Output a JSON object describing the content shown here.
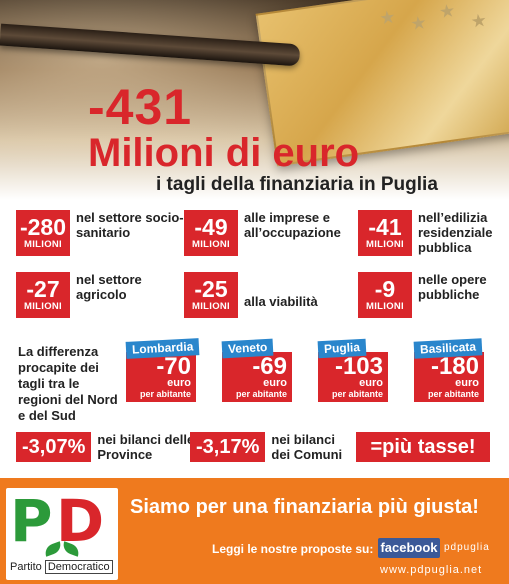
{
  "headline": {
    "number": "-431",
    "unit": "Milioni di euro",
    "subtitle": "i tagli della finanziaria in Puglia"
  },
  "cuts": [
    {
      "value": "-280",
      "unit": "MILIONI",
      "description": "nel settore socio-sanitario"
    },
    {
      "value": "-49",
      "unit": "MILIONI",
      "description": "alle imprese e all’occupazione"
    },
    {
      "value": "-41",
      "unit": "MILIONI",
      "description": "nell’edilizia residenziale pubblica"
    },
    {
      "value": "-27",
      "unit": "MILIONI",
      "description": "nel settore agricolo"
    },
    {
      "value": "-25",
      "unit": "MILIONI",
      "description": "alla viabilità"
    },
    {
      "value": "-9",
      "unit": "MILIONI",
      "description": "nelle opere pubbliche"
    }
  ],
  "comparison": {
    "text": "La differenza procapite dei tagli tra le regioni del Nord e del Sud",
    "regions": [
      {
        "name": "Lombardia",
        "value": "-70",
        "currency": "euro",
        "per": "per abitante"
      },
      {
        "name": "Veneto",
        "value": "-69",
        "currency": "euro",
        "per": "per abitante"
      },
      {
        "name": "Puglia",
        "value": "-103",
        "currency": "euro",
        "per": "per abitante"
      },
      {
        "name": "Basilicata",
        "value": "-180",
        "currency": "euro",
        "per": "per abitante"
      }
    ]
  },
  "budgets": [
    {
      "value": "-3,07%",
      "description": "nei bilanci delle Province"
    },
    {
      "value": "-3,17%",
      "description": "nei bilanci dei Comuni"
    }
  ],
  "tax_slogan": "=più tasse!",
  "footer": {
    "logo_word1": "Partito",
    "logo_word2": "Democratico",
    "slogan": "Siamo per una finanziaria più giusta!",
    "proposals": "Leggi le nostre proposte su:",
    "facebook": "facebook",
    "facebook_user": "pdpuglia",
    "website": "www.pdpuglia.net"
  },
  "colors": {
    "accent_red": "#d9262b",
    "region_blue": "#2a86cc",
    "footer_orange": "#ef7a1e",
    "pd_green": "#2c9a3a",
    "facebook_blue": "#3b5998"
  }
}
